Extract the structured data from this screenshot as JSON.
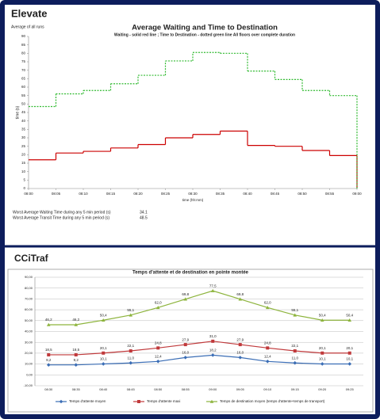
{
  "chart_data": [
    {
      "type": "step",
      "panel_title": "Elevate",
      "note": "Average of all runs",
      "title": "Average Waiting and Time to Destination",
      "subtitle": "Waiting - solid red line ; Time to Destination - dotted green line All floors over complete duration",
      "y_label": "time (s)",
      "x_label": "time (hh:mm)",
      "x": [
        "08:00",
        "08:05",
        "08:10",
        "08:15",
        "08:20",
        "08:25",
        "08:30",
        "08:35",
        "08:40",
        "08:45",
        "08:50",
        "08:55",
        "09:00"
      ],
      "series": [
        {
          "name": "Waiting",
          "color": "#cc0000",
          "dash": false,
          "values": [
            17,
            21,
            22,
            24,
            26,
            30,
            32,
            34,
            25.5,
            25,
            22.5,
            19.5,
            0
          ]
        },
        {
          "name": "Time to Destination",
          "color": "#33bb33",
          "dash": true,
          "values": [
            48.5,
            56,
            58,
            62,
            67,
            75.5,
            80.5,
            80,
            69.5,
            64.5,
            58,
            55,
            0
          ]
        }
      ],
      "ylim": [
        0,
        90
      ],
      "yticks": [
        0,
        5,
        10,
        15,
        20,
        25,
        30,
        35,
        40,
        45,
        50,
        55,
        60,
        65,
        70,
        75,
        80,
        85,
        90
      ],
      "grid": false,
      "stats": [
        {
          "label": "Worst Average Waiting Time during any 5 min period (s)",
          "value": 34.1
        },
        {
          "label": "Worst Average Transit Time during any 5 min period (s)",
          "value": 48.5
        }
      ]
    },
    {
      "type": "line",
      "panel_title": "CCiTraf",
      "title": "Temps d'attente et de destination en pointe montée",
      "categories": [
        "08:30",
        "08:35",
        "08:40",
        "08:45",
        "08:50",
        "08:55",
        "09:00",
        "09:05",
        "09:10",
        "09:15",
        "09:20",
        "09:25"
      ],
      "series": [
        {
          "name": "Temps d'attente moyen",
          "color": "#3a6db5",
          "marker": "diamond",
          "values": [
            9.2,
            9.2,
            10.1,
            11.0,
            12.4,
            16.0,
            18.2,
            16.0,
            12.4,
            11.0,
            10.1,
            10.1
          ],
          "value_labels": [
            "9,2",
            "9,2",
            "10,1",
            "11,0",
            "12,4",
            "16,0",
            "18,2",
            "16,0",
            "12,4",
            "11,0",
            "10,1",
            "10,1"
          ]
        },
        {
          "name": "Temps d'attente maxi",
          "color": "#c0393b",
          "marker": "square",
          "values": [
            18.5,
            18.5,
            20.1,
            22.1,
            24.8,
            27.9,
            31.0,
            27.9,
            24.8,
            22.1,
            20.1,
            20.1
          ],
          "value_labels": [
            "18,5",
            "18,5",
            "20,1",
            "22,1",
            "24,8",
            "27,9",
            "31,0",
            "27,9",
            "24,8",
            "22,1",
            "20,1",
            "20,1"
          ]
        },
        {
          "name": "Temps de destination moyen (temps d'attente+temps de transport)",
          "color": "#8db43c",
          "marker": "triangle",
          "values": [
            46.2,
            46.2,
            50.4,
            55.1,
            62.0,
            69.8,
            77.5,
            69.8,
            62.0,
            55.1,
            50.4,
            50.4
          ],
          "value_labels": [
            "46,2",
            "46,2",
            "50,4",
            "55,1",
            "62,0",
            "69,8",
            "77,5",
            "69,8",
            "62,0",
            "55,1",
            "50,4",
            "50,4"
          ]
        }
      ],
      "ylim": [
        -10,
        90
      ],
      "yticks": [
        {
          "value": -10,
          "label": "-10,00"
        },
        {
          "value": 0,
          "label": "0,00"
        },
        {
          "value": 10,
          "label": "10,00"
        },
        {
          "value": 20,
          "label": "20,00"
        },
        {
          "value": 30,
          "label": "30,00"
        },
        {
          "value": 40,
          "label": "40,00"
        },
        {
          "value": 50,
          "label": "50,00"
        },
        {
          "value": 60,
          "label": "60,00"
        },
        {
          "value": 70,
          "label": "70,00"
        },
        {
          "value": 80,
          "label": "80,00"
        },
        {
          "value": 90,
          "label": "90,00"
        }
      ],
      "grid": true
    }
  ]
}
